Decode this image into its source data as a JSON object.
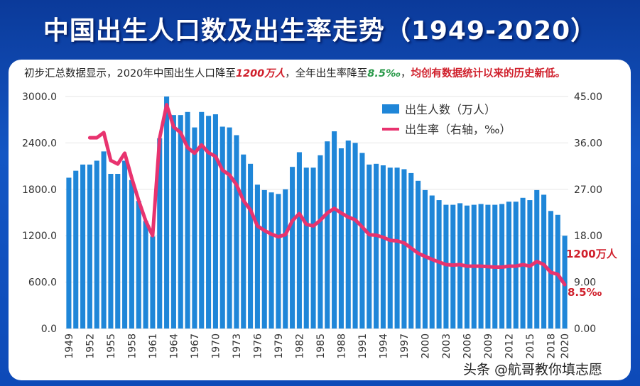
{
  "title": "中国出生人口数及出生率走势（1949-2020）",
  "subtitle": {
    "p1": "初步汇总数据显示，2020年中国出生人口降至",
    "v1": "1200万人",
    "p2": "，全年出生率降至",
    "v2": "8.5‰",
    "p3": "，",
    "p4": "均创有数据统计以来的历史新低。"
  },
  "watermark": "头条 @航哥教你填志愿",
  "colors": {
    "bars": "#1f86d8",
    "line": "#e8336f",
    "annotation": "#d0202c",
    "background": "#1356c4"
  },
  "chart_data": {
    "type": "bar+line",
    "title": "中国出生人口数及出生率走势（1949-2020）",
    "categories": [
      1949,
      1950,
      1951,
      1952,
      1953,
      1954,
      1955,
      1956,
      1957,
      1958,
      1959,
      1960,
      1961,
      1962,
      1963,
      1964,
      1965,
      1966,
      1967,
      1968,
      1969,
      1970,
      1971,
      1972,
      1973,
      1974,
      1975,
      1976,
      1977,
      1978,
      1979,
      1980,
      1981,
      1982,
      1983,
      1984,
      1985,
      1986,
      1987,
      1988,
      1989,
      1990,
      1991,
      1992,
      1993,
      1994,
      1995,
      1996,
      1997,
      1998,
      1999,
      2000,
      2001,
      2002,
      2003,
      2004,
      2005,
      2006,
      2007,
      2008,
      2009,
      2010,
      2011,
      2012,
      2013,
      2014,
      2015,
      2016,
      2017,
      2018,
      2019,
      2020
    ],
    "x_tick_labels": [
      "1949",
      "1952",
      "1955",
      "1958",
      "1961",
      "1964",
      "1967",
      "1970",
      "1973",
      "1976",
      "1979",
      "1982",
      "1985",
      "1988",
      "1991",
      "1994",
      "1997",
      "2000",
      "2003",
      "2006",
      "2009",
      "2012",
      "2015",
      "2018",
      "2020"
    ],
    "series": [
      {
        "name": "出生人数（万人）",
        "type": "bar",
        "axis": "left",
        "values": [
          1950,
          2040,
          2120,
          2120,
          2170,
          2290,
          2000,
          2000,
          2170,
          1920,
          1650,
          1390,
          1190,
          2460,
          3000,
          2760,
          2760,
          2800,
          2600,
          2800,
          2750,
          2770,
          2610,
          2600,
          2500,
          2250,
          2130,
          1860,
          1790,
          1760,
          1740,
          1800,
          2090,
          2280,
          2080,
          2080,
          2240,
          2420,
          2550,
          2330,
          2430,
          2400,
          2270,
          2120,
          2130,
          2110,
          2080,
          2080,
          2060,
          2010,
          1910,
          1790,
          1720,
          1660,
          1600,
          1600,
          1620,
          1590,
          1600,
          1610,
          1600,
          1600,
          1610,
          1640,
          1640,
          1690,
          1660,
          1790,
          1730,
          1520,
          1470,
          1200
        ]
      },
      {
        "name": "出生率（右轴，‰）",
        "type": "line",
        "axis": "right",
        "values": [
          null,
          null,
          null,
          37.0,
          37.0,
          38.0,
          32.6,
          31.9,
          34.0,
          29.2,
          24.8,
          20.9,
          18.0,
          37.0,
          43.4,
          39.1,
          38.0,
          35.1,
          34.0,
          35.6,
          34.1,
          33.4,
          30.7,
          29.8,
          27.9,
          24.8,
          23.0,
          19.9,
          19.0,
          18.3,
          17.8,
          18.2,
          20.9,
          22.3,
          20.2,
          19.9,
          21.0,
          22.4,
          23.3,
          22.4,
          21.6,
          21.1,
          19.7,
          18.2,
          18.1,
          17.7,
          17.1,
          17.0,
          16.6,
          15.6,
          14.6,
          14.0,
          13.4,
          12.9,
          12.4,
          12.3,
          12.4,
          12.1,
          12.1,
          12.1,
          12.0,
          11.9,
          11.9,
          12.1,
          12.1,
          12.4,
          12.1,
          13.0,
          12.4,
          10.9,
          10.5,
          8.5
        ]
      }
    ],
    "left_axis": {
      "ylim": [
        0,
        3000
      ],
      "ticks": [
        "0.0",
        "600.0",
        "1200.0",
        "1800.0",
        "2400.0",
        "3000.0"
      ]
    },
    "right_axis": {
      "ylim": [
        0,
        45
      ],
      "ticks": [
        "0.00",
        "9.00",
        "18.00",
        "27.00",
        "36.00",
        "45.00"
      ]
    },
    "annotations": [
      "1200万人",
      "8.5‰"
    ],
    "legend_position": "top-right",
    "grid": true
  }
}
